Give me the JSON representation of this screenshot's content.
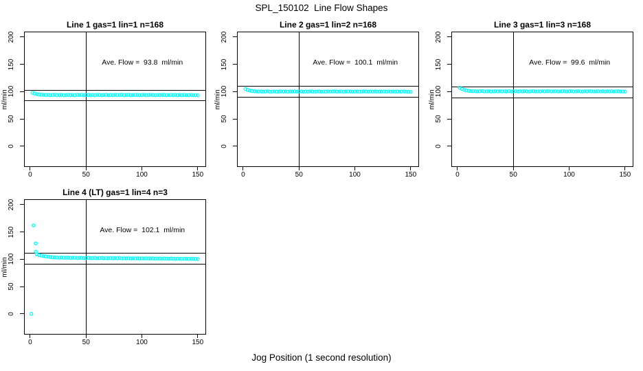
{
  "page": {
    "title": "SPL_150102  Line Flow Shapes",
    "xlabel": "Jog Position (1 second resolution)"
  },
  "colors": {
    "point": "#00FFFF",
    "axis": "#000000",
    "background": "#FFFFFF"
  },
  "axes": {
    "ylabel": "ml/min",
    "x_ticks": [
      0,
      50,
      100,
      150
    ],
    "y_ticks": [
      0,
      50,
      100,
      150,
      200
    ],
    "xlim": [
      -5.5,
      157.5
    ],
    "ylim": [
      -38,
      210
    ],
    "grid": false
  },
  "chart_data": [
    {
      "type": "scatter",
      "title": "Line 1 gas=1 lin=1 n=168",
      "annotation": "Ave. Flow =  93.8  ml/min",
      "ave_flow_ml_min": 93.8,
      "n": 168,
      "ref_lines": {
        "upper": 103.2,
        "lower": 84.4,
        "vertical_x": 50
      },
      "series": {
        "x0": 2,
        "dx": 2,
        "y": [
          97.8,
          96.4,
          95.4,
          94.7,
          94.3,
          94.0,
          93.8,
          94.1,
          93.6,
          93.9,
          94.2,
          93.5,
          93.8,
          94.0,
          93.4,
          93.7,
          94.1,
          93.6,
          93.9,
          93.5,
          94.0,
          93.7,
          94.2,
          93.6,
          93.8,
          94.1,
          93.5,
          93.9,
          93.6,
          94.0,
          93.8,
          93.4,
          93.9,
          94.1,
          93.6,
          93.8,
          93.5,
          94.0,
          93.7,
          93.9,
          94.2,
          93.6,
          93.8,
          94.0,
          93.5,
          93.7,
          94.1,
          93.8,
          93.6,
          93.9,
          94.0,
          93.5,
          93.8,
          94.1,
          93.7,
          93.4,
          93.9,
          93.6,
          94.0,
          93.8,
          93.5,
          93.7,
          94.0,
          93.6,
          93.9,
          93.4,
          93.8,
          93.6,
          94.0,
          93.5,
          93.7,
          93.9,
          93.4,
          93.6,
          93.3
        ]
      },
      "extra_points": []
    },
    {
      "type": "scatter",
      "title": "Line 2 gas=1 lin=2 n=168",
      "annotation": "Ave. Flow =  100.1  ml/min",
      "ave_flow_ml_min": 100.1,
      "n": 168,
      "ref_lines": {
        "upper": 110.1,
        "lower": 90.1,
        "vertical_x": 50
      },
      "series": {
        "x0": 2,
        "dx": 2,
        "y": [
          104.8,
          103.0,
          101.8,
          101.1,
          100.7,
          100.4,
          100.2,
          100.5,
          100.0,
          100.3,
          100.6,
          99.9,
          100.2,
          100.4,
          99.8,
          100.1,
          100.5,
          100.0,
          100.3,
          99.9,
          100.4,
          100.1,
          100.6,
          100.0,
          100.2,
          100.5,
          99.9,
          100.3,
          100.0,
          100.4,
          100.2,
          99.8,
          100.3,
          100.5,
          100.0,
          100.2,
          99.9,
          100.4,
          100.1,
          100.3,
          100.6,
          100.0,
          100.2,
          100.4,
          99.9,
          100.1,
          100.5,
          100.2,
          100.0,
          100.3,
          100.4,
          99.9,
          100.2,
          100.5,
          100.1,
          99.8,
          100.3,
          100.0,
          100.4,
          100.2,
          99.9,
          100.1,
          100.4,
          100.0,
          100.3,
          99.8,
          100.2,
          100.0,
          100.4,
          99.9,
          100.1,
          100.3,
          99.8,
          99.9,
          99.6
        ]
      },
      "extra_points": []
    },
    {
      "type": "scatter",
      "title": "Line 3 gas=1 lin=3 n=168",
      "annotation": "Ave. Flow =  99.6  ml/min",
      "ave_flow_ml_min": 99.6,
      "n": 168,
      "ref_lines": {
        "upper": 109.6,
        "lower": 89.6,
        "vertical_x": 50
      },
      "series": {
        "x0": 2,
        "dx": 2,
        "y": [
          107.2,
          105.0,
          103.3,
          102.2,
          101.5,
          101.0,
          100.7,
          100.9,
          100.4,
          100.7,
          101.0,
          100.3,
          100.6,
          100.8,
          100.2,
          100.5,
          100.9,
          100.4,
          100.7,
          100.3,
          100.8,
          100.5,
          101.0,
          100.4,
          100.6,
          100.9,
          100.3,
          100.7,
          100.4,
          100.8,
          100.6,
          100.2,
          100.7,
          100.9,
          100.4,
          100.6,
          100.3,
          100.8,
          100.5,
          100.7,
          101.0,
          100.4,
          100.6,
          100.8,
          100.3,
          100.5,
          100.9,
          100.6,
          100.4,
          100.7,
          100.8,
          100.3,
          100.6,
          100.9,
          100.5,
          100.2,
          100.7,
          100.4,
          100.8,
          100.6,
          100.3,
          100.5,
          100.8,
          100.4,
          100.7,
          100.2,
          100.6,
          100.4,
          100.8,
          100.3,
          100.5,
          100.7,
          100.2,
          100.3,
          100.0
        ]
      },
      "extra_points": []
    },
    {
      "type": "scatter",
      "title": "Line 4 (LT) gas=1 lin=4 n=3",
      "annotation": "Ave. Flow =  102.1  ml/min",
      "ave_flow_ml_min": 102.1,
      "n": 3,
      "ref_lines": {
        "upper": 112.3,
        "lower": 91.9,
        "vertical_x": 50
      },
      "series": {
        "x0": 6,
        "dx": 2,
        "y": [
          108.8,
          107.6,
          106.6,
          105.8,
          105.1,
          104.6,
          104.1,
          103.7,
          103.4,
          103.1,
          102.9,
          103.3,
          102.6,
          102.9,
          103.1,
          102.4,
          102.7,
          102.9,
          102.2,
          102.5,
          102.8,
          102.1,
          102.4,
          102.6,
          102.0,
          102.3,
          102.5,
          101.9,
          102.2,
          102.4,
          101.8,
          102.1,
          101.9,
          102.3,
          101.7,
          102.0,
          101.8,
          102.2,
          101.6,
          101.9,
          101.7,
          102.0,
          101.5,
          101.8,
          101.6,
          101.9,
          101.4,
          101.7,
          101.5,
          101.8,
          101.3,
          101.6,
          101.4,
          101.2,
          101.5,
          101.3,
          101.1,
          101.4,
          101.2,
          101.0,
          101.3,
          101.1,
          100.9,
          101.2,
          101.0,
          100.8,
          101.1,
          100.9,
          100.7,
          101.0,
          100.8,
          100.6,
          100.4
        ]
      },
      "extra_points": [
        [
          1,
          0
        ],
        [
          3,
          162
        ],
        [
          5,
          129
        ],
        [
          5,
          114
        ]
      ]
    }
  ]
}
